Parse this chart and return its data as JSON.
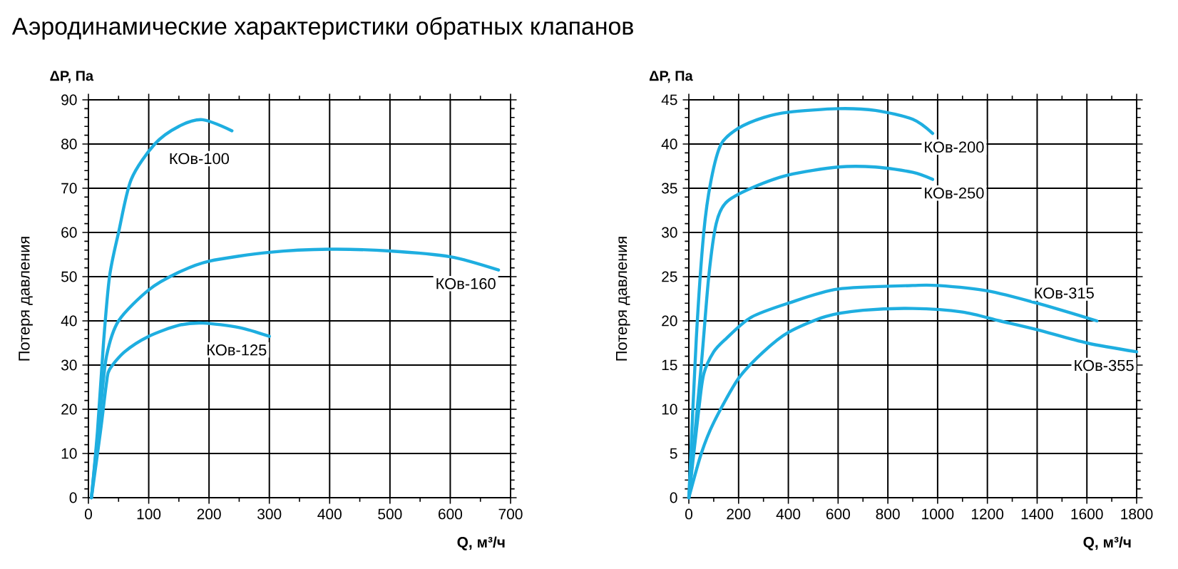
{
  "chart_data": [
    {
      "type": "line",
      "title": "Аэродинамические характеристики обратных клапанов",
      "xlabel": "Q, м³/ч",
      "ylabel": "Потеря давления",
      "annotations": [
        "ΔP, Па"
      ],
      "xlim": [
        0,
        700
      ],
      "ylim": [
        0,
        90
      ],
      "xticks": [
        0,
        100,
        200,
        300,
        400,
        500,
        600,
        700
      ],
      "yticks": [
        0,
        10,
        20,
        30,
        40,
        50,
        60,
        70,
        80,
        90
      ],
      "grid": true,
      "series": [
        {
          "name": "КОв-100",
          "color": "#1eaee0",
          "x": [
            5,
            15,
            25,
            35,
            50,
            71,
            110,
            150,
            189,
            238
          ],
          "values": [
            0,
            15,
            35,
            50,
            60,
            72,
            80,
            84,
            85.5,
            83
          ]
        },
        {
          "name": "КОв-160",
          "color": "#1eaee0",
          "x": [
            5,
            20,
            30,
            50,
            100,
            150,
            200,
            300,
            400,
            500,
            600,
            680
          ],
          "values": [
            0,
            20,
            32,
            40,
            47,
            51,
            53.5,
            55.5,
            56.2,
            55.8,
            54.5,
            51.5
          ]
        },
        {
          "name": "КОв-125",
          "color": "#1eaee0",
          "x": [
            5,
            20,
            30,
            35,
            60,
            100,
            150,
            190,
            250,
            300
          ],
          "values": [
            0,
            15,
            26,
            29,
            33,
            36.5,
            39,
            39.5,
            38.5,
            36.5
          ]
        }
      ]
    },
    {
      "type": "line",
      "xlabel": "Q, м³/ч",
      "ylabel": "Потеря давления",
      "annotations": [
        "ΔP, Па"
      ],
      "xlim": [
        0,
        1800
      ],
      "ylim": [
        0,
        45
      ],
      "xticks": [
        0,
        200,
        400,
        600,
        800,
        1000,
        1200,
        1400,
        1600,
        1800
      ],
      "yticks": [
        0,
        5,
        10,
        15,
        20,
        25,
        30,
        35,
        40,
        45
      ],
      "grid": true,
      "series": [
        {
          "name": "КОв-200",
          "color": "#1eaee0",
          "x": [
            0,
            30,
            60,
            90,
            130,
            200,
            300,
            400,
            600,
            750,
            900,
            980
          ],
          "values": [
            0,
            18,
            30,
            36,
            40,
            41.8,
            43,
            43.6,
            44,
            43.8,
            42.8,
            41.2
          ]
        },
        {
          "name": "КОв-250",
          "color": "#1eaee0",
          "x": [
            0,
            50,
            80,
            110,
            150,
            250,
            400,
            600,
            750,
            900,
            980
          ],
          "values": [
            0,
            15,
            25,
            31,
            33.4,
            35,
            36.5,
            37.4,
            37.4,
            36.8,
            36
          ]
        },
        {
          "name": "КОв-315",
          "color": "#1eaee0",
          "x": [
            0,
            40,
            60,
            100,
            150,
            250,
            400,
            600,
            900,
            1000,
            1200,
            1400,
            1640
          ],
          "values": [
            0,
            10,
            14,
            16.5,
            18,
            20.4,
            22,
            23.6,
            24,
            24,
            23.4,
            22,
            20
          ]
        },
        {
          "name": "КОв-355",
          "color": "#1eaee0",
          "x": [
            0,
            50,
            100,
            200,
            300,
            400,
            550,
            700,
            900,
            1100,
            1250,
            1400,
            1600,
            1800
          ],
          "values": [
            0,
            5,
            8.5,
            13.5,
            16.5,
            18.7,
            20.5,
            21.2,
            21.4,
            21,
            20,
            19,
            17.5,
            16.5
          ]
        }
      ]
    }
  ]
}
